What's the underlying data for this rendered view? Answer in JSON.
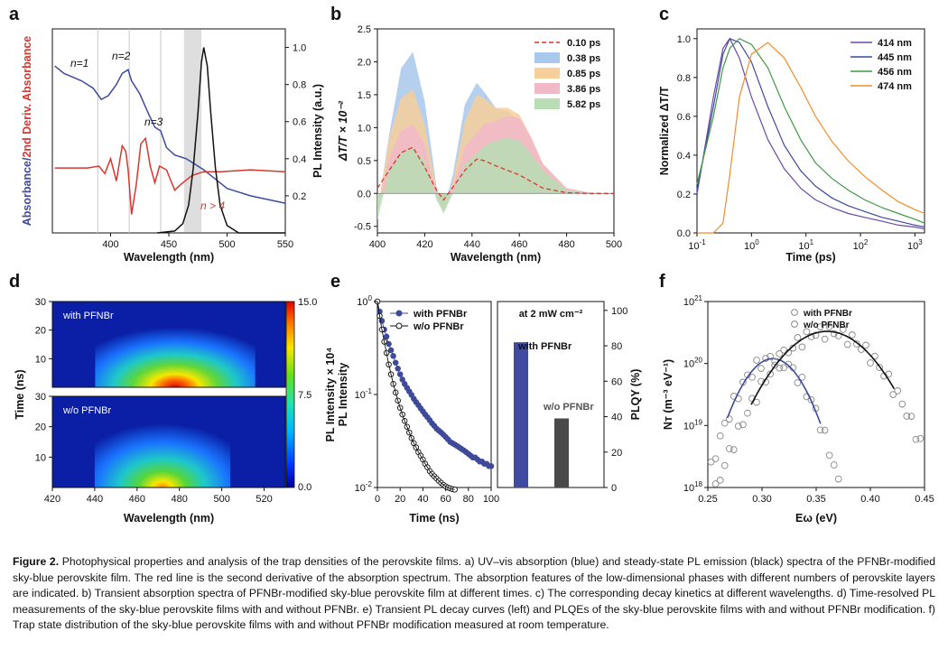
{
  "colors": {
    "blue": "#3f4a9b",
    "red": "#d8372f",
    "black": "#111111",
    "orange": "#f28c28",
    "purple": "#6a4aa3",
    "green": "#3f9a44",
    "bar_blue": "#3f4aa0",
    "bar_gray": "#4a4a4a"
  },
  "panels": {
    "a": {
      "label": "a",
      "xlabel": "Wavelength (nm)",
      "ylabel_left_blue": "Absorbance/",
      "ylabel_left_red": "2nd Deriv. Absorbance",
      "ylabel_right": "PL Intensity (a.u.)",
      "annotations": [
        "n=1",
        "n=2",
        "n=3",
        "n > 4"
      ]
    },
    "b": {
      "label": "b",
      "xlabel": "Wavelength (nm)",
      "ylabel": "ΔT/T × 10⁻²"
    },
    "c": {
      "label": "c",
      "xlabel": "Time (ps)",
      "ylabel": "Normalized ΔT/T"
    },
    "d": {
      "label": "d",
      "xlabel": "Wavelength (nm)",
      "ylabel": "Time (ns)",
      "top_label": "with PFNBr",
      "bottom_label": "w/o PFNBr",
      "colorbar_ticks": [
        "15.0",
        "7.5",
        "0.0"
      ]
    },
    "e": {
      "label": "e",
      "xlabel": "Time (ns)",
      "ylabel_outer": "PL Intensity × 10⁴",
      "ylabel_inner": "PL Intensity",
      "ylabel_right": "PLQY (%)",
      "inset_title": "at 2 mW cm⁻²",
      "bar_labels": [
        "with PFNBr",
        "w/o PFNBr"
      ]
    },
    "f": {
      "label": "f",
      "xlabel": "Eω (eV)",
      "ylabel": "Nт (m⁻³ eV⁻¹)"
    }
  },
  "chart_data": [
    {
      "panel": "a",
      "type": "line",
      "xlim": [
        350,
        550
      ],
      "ylim_right": [
        0,
        1.1
      ],
      "xticks": [
        "400",
        "450",
        "500",
        "550"
      ],
      "yticks_right": [
        "0.2",
        "0.4",
        "0.6",
        "0.8",
        "1.0"
      ],
      "series": [
        {
          "color": "blue",
          "x": [
            352,
            360,
            375,
            385,
            392,
            398,
            405,
            410,
            415,
            418,
            425,
            432,
            438,
            443,
            448,
            455,
            465,
            480,
            500,
            520,
            550
          ],
          "y": [
            0.9,
            0.86,
            0.82,
            0.78,
            0.72,
            0.74,
            0.8,
            0.86,
            0.88,
            0.82,
            0.75,
            0.65,
            0.57,
            0.55,
            0.46,
            0.42,
            0.4,
            0.34,
            0.24,
            0.2,
            0.16
          ]
        },
        {
          "color": "red",
          "x": [
            352,
            365,
            380,
            390,
            395,
            400,
            405,
            410,
            413,
            415,
            418,
            422,
            426,
            430,
            434,
            438,
            442,
            448,
            455,
            460,
            470,
            480,
            495,
            520,
            550
          ],
          "y": [
            0.35,
            0.35,
            0.35,
            0.36,
            0.32,
            0.4,
            0.28,
            0.47,
            0.44,
            0.34,
            0.1,
            0.26,
            0.48,
            0.51,
            0.36,
            0.27,
            0.36,
            0.34,
            0.23,
            0.26,
            0.31,
            0.33,
            0.33,
            0.34,
            0.33
          ]
        },
        {
          "color": "black",
          "x": [
            440,
            455,
            462,
            467,
            471,
            475,
            478,
            480,
            483,
            486,
            490,
            494,
            500,
            510,
            550
          ],
          "y": [
            0.0,
            0.01,
            0.05,
            0.15,
            0.35,
            0.65,
            0.92,
            1.0,
            0.9,
            0.65,
            0.35,
            0.15,
            0.04,
            0.0,
            0.0
          ]
        }
      ],
      "vlines": [
        389,
        416,
        443
      ],
      "band": [
        463,
        478
      ]
    },
    {
      "panel": "b",
      "type": "area",
      "xlim": [
        400,
        500
      ],
      "ylim": [
        -0.6,
        2.5
      ],
      "xticks": [
        "400",
        "420",
        "440",
        "460",
        "480",
        "500"
      ],
      "yticks": [
        "-0.5",
        "0.0",
        "0.5",
        "1.0",
        "1.5",
        "2.0",
        "2.5"
      ],
      "x": [
        400,
        405,
        410,
        415,
        420,
        425,
        428,
        432,
        437,
        442,
        445,
        450,
        455,
        460,
        465,
        470,
        480,
        490,
        500
      ],
      "series": [
        {
          "name": "0.38 ps",
          "color": "#a8c8ec",
          "y": [
            -0.3,
            0.9,
            1.9,
            2.15,
            1.4,
            0.1,
            -0.25,
            0.3,
            1.35,
            1.68,
            1.55,
            1.3,
            1.25,
            1.1,
            0.75,
            0.4,
            0.05,
            0.0,
            0.0
          ]
        },
        {
          "name": "0.85 ps",
          "color": "#f6cf9a",
          "y": [
            -0.3,
            0.85,
            1.45,
            1.58,
            1.05,
            0.05,
            -0.3,
            0.2,
            1.1,
            1.5,
            1.45,
            1.3,
            1.3,
            1.2,
            0.85,
            0.45,
            0.08,
            0.01,
            0.0
          ]
        },
        {
          "name": "3.86 ps",
          "color": "#f2b8c8",
          "y": [
            -0.3,
            0.55,
            0.95,
            1.05,
            0.75,
            -0.05,
            -0.3,
            0.1,
            0.7,
            0.92,
            1.05,
            1.1,
            1.18,
            1.15,
            0.85,
            0.45,
            0.08,
            0.01,
            0.0
          ]
        },
        {
          "name": "5.82 ps",
          "color": "#b9ddb5",
          "y": [
            -0.4,
            0.35,
            0.6,
            0.7,
            0.5,
            -0.1,
            -0.3,
            0.0,
            0.45,
            0.6,
            0.72,
            0.8,
            0.85,
            0.8,
            0.6,
            0.35,
            0.05,
            0.0,
            0.0
          ]
        }
      ],
      "dashed": {
        "name": "0.10 ps",
        "color": "#d8372f",
        "y": [
          0.08,
          0.35,
          0.62,
          0.7,
          0.4,
          0.05,
          -0.1,
          0.1,
          0.35,
          0.52,
          0.5,
          0.42,
          0.35,
          0.28,
          0.18,
          0.08,
          0.01,
          0.0,
          0.0
        ]
      }
    },
    {
      "panel": "c",
      "type": "line",
      "xscale": "log",
      "xlim": [
        0.1,
        1500
      ],
      "ylim": [
        0,
        1.05
      ],
      "xticks": [
        "10-1",
        "100",
        "101",
        "102",
        "103"
      ],
      "yticks": [
        "0.0",
        "0.2",
        "0.4",
        "0.6",
        "0.8",
        "1.0"
      ],
      "x": [
        0.1,
        0.2,
        0.3,
        0.4,
        0.6,
        1,
        2,
        4,
        8,
        15,
        30,
        60,
        120,
        250,
        500,
        1000,
        1500
      ],
      "series": [
        {
          "name": "414 nm",
          "color": "#6a4aa3",
          "y": [
            0.2,
            0.7,
            0.95,
            1.0,
            0.9,
            0.7,
            0.48,
            0.33,
            0.23,
            0.17,
            0.13,
            0.1,
            0.08,
            0.06,
            0.04,
            0.03,
            0.02
          ]
        },
        {
          "name": "445 nm",
          "color": "#3f4a9b",
          "y": [
            0.22,
            0.65,
            0.92,
            1.0,
            0.98,
            0.88,
            0.65,
            0.45,
            0.32,
            0.24,
            0.18,
            0.14,
            0.11,
            0.08,
            0.06,
            0.04,
            0.03
          ]
        },
        {
          "name": "456 nm",
          "color": "#3f9a44",
          "y": [
            0.25,
            0.6,
            0.85,
            0.95,
            1.0,
            0.97,
            0.85,
            0.65,
            0.48,
            0.36,
            0.28,
            0.22,
            0.17,
            0.13,
            0.1,
            0.07,
            0.05
          ]
        },
        {
          "name": "474 nm",
          "color": "#f28c28",
          "y": [
            0.0,
            0.0,
            0.05,
            0.3,
            0.7,
            0.92,
            0.98,
            0.9,
            0.75,
            0.6,
            0.47,
            0.37,
            0.29,
            0.22,
            0.16,
            0.12,
            0.1
          ]
        }
      ]
    },
    {
      "panel": "d",
      "type": "heatmap",
      "xlim": [
        420,
        530
      ],
      "ylim": [
        0,
        30
      ],
      "xticks": [
        "420",
        "440",
        "460",
        "480",
        "500",
        "520"
      ],
      "yticks": [
        "30",
        "20",
        "10"
      ],
      "top": {
        "center": 478,
        "width": 9,
        "peak": 18
      },
      "bottom": {
        "center": 472,
        "width": 8,
        "peak": 6
      }
    },
    {
      "panel": "e",
      "type": "scatter",
      "yscale": "log",
      "xlim": [
        0,
        100
      ],
      "ylim": [
        0.01,
        1
      ],
      "xticks": [
        "0",
        "20",
        "40",
        "60",
        "80",
        "100"
      ],
      "yticks": [
        "10-2",
        "10-1",
        "100"
      ],
      "series": [
        {
          "name": "with PFNBr",
          "color": "#3f4a9b",
          "filled": true,
          "x": [
            0,
            2,
            4,
            6,
            8,
            10,
            12,
            14,
            16,
            18,
            20,
            22,
            24,
            26,
            28,
            30,
            32,
            34,
            36,
            38,
            40,
            42,
            44,
            46,
            48,
            50,
            52,
            54,
            56,
            58,
            60,
            62,
            64,
            66,
            68,
            70,
            72,
            74,
            76,
            78,
            80,
            82,
            84,
            86,
            88,
            90,
            92,
            94,
            96,
            98,
            100
          ],
          "y": [
            1.0,
            0.78,
            0.62,
            0.5,
            0.42,
            0.35,
            0.3,
            0.26,
            0.22,
            0.19,
            0.165,
            0.145,
            0.13,
            0.118,
            0.108,
            0.099,
            0.09,
            0.083,
            0.077,
            0.071,
            0.066,
            0.061,
            0.057,
            0.053,
            0.049,
            0.046,
            0.043,
            0.041,
            0.039,
            0.037,
            0.035,
            0.033,
            0.031,
            0.03,
            0.029,
            0.028,
            0.027,
            0.026,
            0.025,
            0.024,
            0.023,
            0.022,
            0.021,
            0.021,
            0.02,
            0.019,
            0.019,
            0.018,
            0.018,
            0.017,
            0.017
          ]
        },
        {
          "name": "w/o PFNBr",
          "color": "#111111",
          "filled": false,
          "x": [
            0,
            2,
            4,
            6,
            8,
            10,
            12,
            14,
            16,
            18,
            20,
            22,
            24,
            26,
            28,
            30,
            32,
            34,
            36,
            38,
            40,
            42,
            44,
            46,
            48,
            50,
            52,
            54,
            56,
            58,
            60,
            62,
            64,
            66,
            68
          ],
          "y": [
            1.0,
            0.7,
            0.5,
            0.37,
            0.28,
            0.21,
            0.165,
            0.13,
            0.105,
            0.086,
            0.072,
            0.061,
            0.052,
            0.045,
            0.039,
            0.034,
            0.03,
            0.027,
            0.024,
            0.022,
            0.02,
            0.018,
            0.0165,
            0.015,
            0.014,
            0.0132,
            0.0125,
            0.0118,
            0.0112,
            0.0107,
            0.0103,
            0.01,
            0.0098,
            0.0096,
            0.0095
          ]
        }
      ],
      "bars": {
        "ylim": [
          0,
          105
        ],
        "yticks": [
          "0",
          "20",
          "40",
          "60",
          "80",
          "100"
        ],
        "values": [
          82,
          39
        ]
      }
    },
    {
      "panel": "f",
      "type": "scatter",
      "yscale": "log",
      "xlim": [
        0.25,
        0.45
      ],
      "ylim": [
        1e+18,
        1e+21
      ],
      "xticks": [
        "0.25",
        "0.30",
        "0.35",
        "0.40",
        "0.45"
      ],
      "yticks": [
        "1018",
        "1019",
        "1020",
        "1021"
      ],
      "series": [
        {
          "name": "with PFNBr",
          "color": "#3f4a9b",
          "center": 0.31,
          "sigma": 0.02,
          "peak": 1.2e+20,
          "fit_range": [
            0.268,
            0.355
          ]
        },
        {
          "name": "w/o PFNBr",
          "color": "#111111",
          "center": 0.36,
          "sigma": 0.03,
          "peak": 3.3e+20,
          "fit_range": [
            0.29,
            0.423
          ]
        }
      ]
    }
  ],
  "caption": {
    "label": "Figure 2.",
    "text": " Photophysical properties and analysis of the trap densities of the perovskite films. a) UV–vis absorption (blue) and steady-state PL emission (black) spectra of the PFNBr-modified sky-blue perovskite film. The red line is the second derivative of the absorption spectrum. The absorption features of the low-dimensional phases with different numbers of perovskite layers are indicated. b) Transient absorption spectra of PFNBr-modified sky-blue perovskite film at different times. c) The corresponding decay kinetics at different wavelengths. d) Time-resolved PL measurements of the sky-blue perovskite films with and without PFNBr. e) Transient PL decay curves (left) and PLQEs of the sky-blue perovskite films with and without PFNBr modification. f) Trap state distribution of the sky-blue perovskite films with and without PFNBr modification measured at room temperature."
  }
}
